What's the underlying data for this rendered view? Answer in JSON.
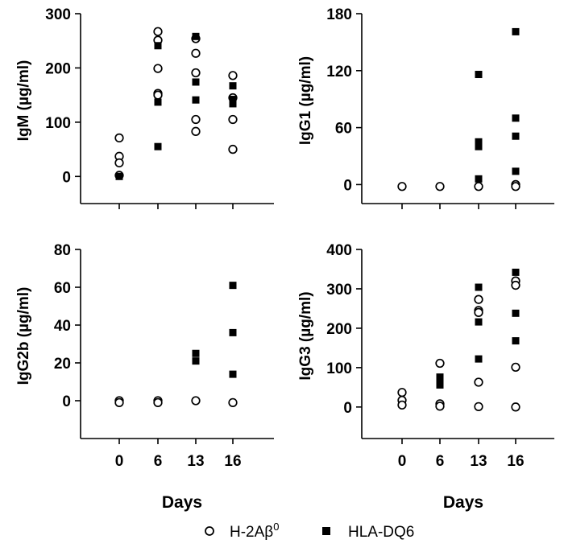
{
  "chart_data": [
    {
      "type": "scatter",
      "ylabel": "IgM (µg/ml)",
      "ylim": [
        -50,
        300
      ],
      "yticks": [
        "0",
        "100",
        "200",
        "300"
      ],
      "xticks": [
        "0",
        "6",
        "13",
        "16"
      ],
      "series": [
        {
          "name": "H-2Aβ0",
          "marker": "open-circle",
          "x": [
            "0",
            "0",
            "0",
            "0",
            "6",
            "6",
            "6",
            "6",
            "6",
            "13",
            "13",
            "13",
            "13",
            "13",
            "16",
            "16",
            "16",
            "16"
          ],
          "y": [
            71,
            37,
            25,
            2,
            267,
            251,
            199,
            153,
            150,
            254,
            227,
            191,
            105,
            83,
            186,
            145,
            105,
            50
          ]
        },
        {
          "name": "HLA-DQ6",
          "marker": "filled-square",
          "x": [
            "0",
            "6",
            "6",
            "6",
            "13",
            "13",
            "13",
            "16",
            "16",
            "16"
          ],
          "y": [
            0,
            241,
            137,
            55,
            258,
            174,
            141,
            167,
            142,
            134
          ]
        }
      ]
    },
    {
      "type": "scatter",
      "ylabel": "IgG1 (µg/ml)",
      "ylim": [
        -20,
        180
      ],
      "yticks": [
        "0",
        "60",
        "120",
        "180"
      ],
      "xticks": [
        "0",
        "6",
        "13",
        "16"
      ],
      "series": [
        {
          "name": "H-2Aβ0",
          "marker": "open-circle",
          "x": [
            "0",
            "6",
            "13",
            "16",
            "16"
          ],
          "y": [
            -2,
            -2,
            -2,
            0,
            -2
          ]
        },
        {
          "name": "HLA-DQ6",
          "marker": "filled-square",
          "x": [
            "13",
            "13",
            "13",
            "13",
            "16",
            "16",
            "16",
            "16"
          ],
          "y": [
            116,
            45,
            40,
            6,
            161,
            70,
            51,
            14
          ]
        }
      ]
    },
    {
      "type": "scatter",
      "ylabel": "IgG2b (µg/ml)",
      "ylim": [
        -20,
        80
      ],
      "yticks": [
        "0",
        "20",
        "40",
        "60",
        "80"
      ],
      "xticks": [
        "0",
        "6",
        "13",
        "16"
      ],
      "series": [
        {
          "name": "H-2Aβ0",
          "marker": "open-circle",
          "x": [
            "0",
            "0",
            "6",
            "6",
            "13",
            "16"
          ],
          "y": [
            0,
            -1,
            0,
            -1,
            0,
            -1
          ]
        },
        {
          "name": "HLA-DQ6",
          "marker": "filled-square",
          "x": [
            "13",
            "13",
            "16",
            "16",
            "16"
          ],
          "y": [
            25,
            21,
            61,
            36,
            14
          ]
        }
      ]
    },
    {
      "type": "scatter",
      "ylabel": "IgG3 (µg/ml)",
      "ylim": [
        -80,
        400
      ],
      "yticks": [
        "0",
        "100",
        "200",
        "300",
        "400"
      ],
      "xticks": [
        "0",
        "6",
        "13",
        "16"
      ],
      "series": [
        {
          "name": "H-2Aβ0",
          "marker": "open-circle",
          "x": [
            "0",
            "0",
            "0",
            "6",
            "6",
            "6",
            "13",
            "13",
            "13",
            "13",
            "13",
            "16",
            "16",
            "16",
            "16"
          ],
          "y": [
            37,
            17,
            5,
            111,
            8,
            2,
            273,
            245,
            240,
            63,
            1,
            320,
            309,
            101,
            0
          ]
        },
        {
          "name": "HLA-DQ6",
          "marker": "filled-square",
          "x": [
            "6",
            "6",
            "6",
            "13",
            "13",
            "13",
            "16",
            "16",
            "16"
          ],
          "y": [
            76,
            67,
            56,
            304,
            216,
            122,
            342,
            238,
            168
          ]
        }
      ]
    }
  ],
  "xlabel": "Days",
  "legend": [
    {
      "label": "H-2Aβ",
      "sup": "0",
      "marker": "open-circle"
    },
    {
      "label": "HLA-DQ6",
      "sup": "",
      "marker": "filled-square"
    }
  ]
}
